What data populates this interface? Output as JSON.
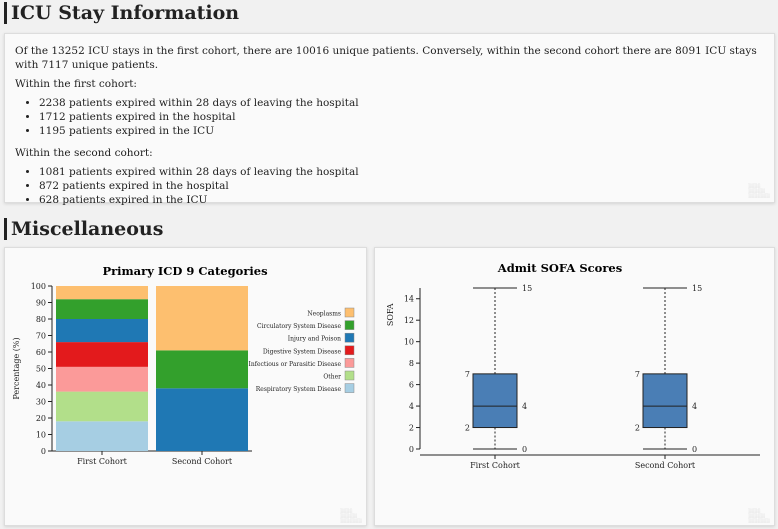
{
  "icu": {
    "heading": "ICU Stay Information",
    "summary": "Of the 13252 ICU stays in the first cohort, there are 10016 unique patients. Conversely, within the second cohort there are 8091 ICU stays with 7117 unique patients.",
    "first_label": "Within the first cohort:",
    "first_items": [
      "2238 patients expired within 28 days of leaving the hospital",
      "1712 patients expired in the hospital",
      "1195 patients expired in the ICU"
    ],
    "second_label": "Within the second cohort:",
    "second_items": [
      "1081 patients expired within 28 days of leaving the hospital",
      "872 patients expired in the hospital",
      "628 patients expired in the ICU"
    ]
  },
  "misc": {
    "heading": "Miscellaneous"
  },
  "chart_data": [
    {
      "type": "bar",
      "stacked": true,
      "title": "Primary ICD 9 Categories",
      "ylabel": "Percentage (%)",
      "xlabel": "",
      "ylim": [
        0,
        100
      ],
      "yticks": [
        0,
        10,
        20,
        30,
        40,
        50,
        60,
        70,
        80,
        90,
        100
      ],
      "categories": [
        "First Cohort",
        "Second Cohort"
      ],
      "legend_position": "right",
      "series": [
        {
          "name": "Respiratory System Disease",
          "color": "#a6cee3",
          "values": [
            18,
            0
          ]
        },
        {
          "name": "Other",
          "color": "#b2df8a",
          "values": [
            18,
            0
          ]
        },
        {
          "name": "Infectious or Parasitic Disease",
          "color": "#fb9a99",
          "values": [
            15,
            0
          ]
        },
        {
          "name": "Digestive System Disease",
          "color": "#e31a1c",
          "values": [
            15,
            0
          ]
        },
        {
          "name": "Injury and Poison",
          "color": "#1f78b4",
          "values": [
            14,
            38
          ]
        },
        {
          "name": "Circulatory System Disease",
          "color": "#33a02c",
          "values": [
            12,
            23
          ]
        },
        {
          "name": "Neoplasms",
          "color": "#fdbf6f",
          "values": [
            8,
            39
          ]
        }
      ],
      "legend_order": [
        "Neoplasms",
        "Circulatory System Disease",
        "Injury and Poison",
        "Digestive System Disease",
        "Infectious or Parasitic Disease",
        "Other",
        "Respiratory System Disease"
      ]
    },
    {
      "type": "box",
      "title": "Admit SOFA Scores",
      "ylabel": "SOFA",
      "ylim": [
        0,
        15
      ],
      "yticks": [
        0,
        2,
        4,
        6,
        8,
        10,
        12,
        14
      ],
      "categories": [
        "First Cohort",
        "Second Cohort"
      ],
      "color": "#4a7eb5",
      "boxes": [
        {
          "min": 0,
          "q1": 2,
          "median": 4,
          "q3": 7,
          "max": 15
        },
        {
          "min": 0,
          "q1": 2,
          "median": 4,
          "q3": 7,
          "max": 15
        }
      ]
    }
  ]
}
